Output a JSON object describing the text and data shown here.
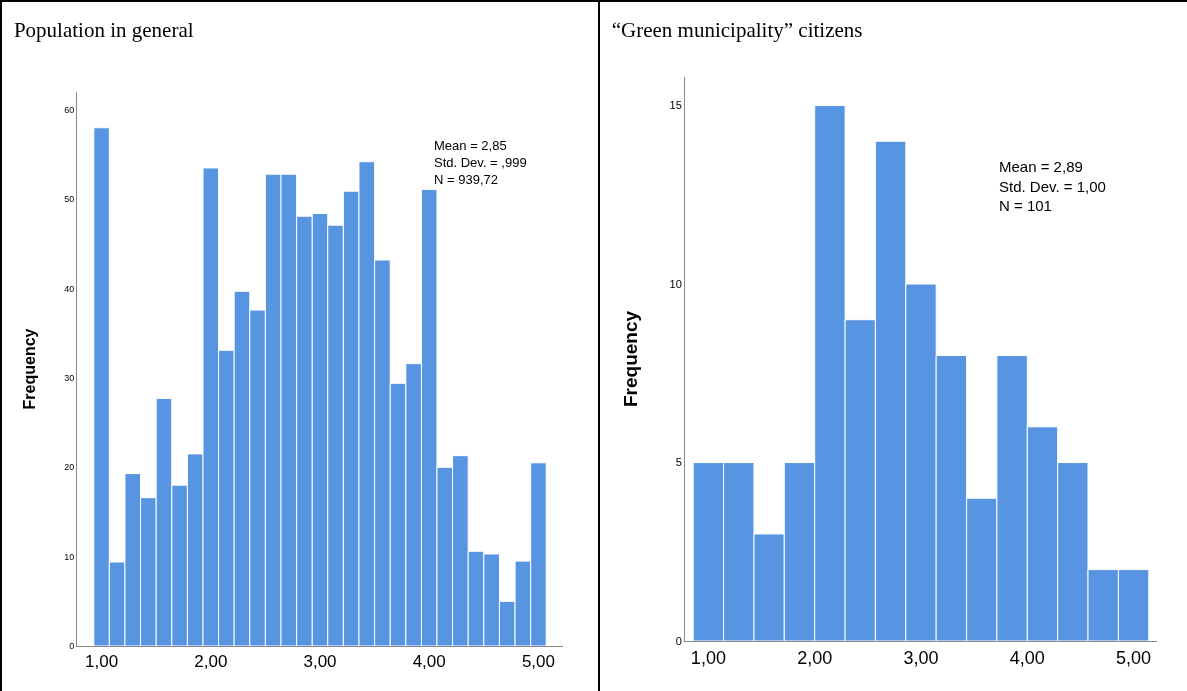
{
  "chart_data": [
    {
      "type": "histogram",
      "title": "Population in general",
      "ylabel": "Frequency",
      "color": "#5795e3",
      "bins": [
        0.929,
        1.071,
        1.214,
        1.357,
        1.5,
        1.643,
        1.786,
        1.929,
        2.071,
        2.214,
        2.357,
        2.5,
        2.643,
        2.786,
        2.929,
        3.071,
        3.214,
        3.357,
        3.5,
        3.643,
        3.786,
        3.929,
        4.071,
        4.214,
        4.357,
        4.5,
        4.643,
        4.786,
        4.929,
        5.071
      ],
      "values": [
        58,
        9.4,
        19.3,
        16.6,
        27.7,
        18,
        21.5,
        53.5,
        33.1,
        39.7,
        37.6,
        52.8,
        52.8,
        48.1,
        48.4,
        47.1,
        50.9,
        54.2,
        43.2,
        29.4,
        31.6,
        51.1,
        20,
        21.3,
        10.6,
        10.3,
        5,
        9.5,
        20.5
      ],
      "xlim": [
        0.775,
        5.225
      ],
      "xticks": [
        {
          "value": 1,
          "label": "1,00"
        },
        {
          "value": 2,
          "label": "2,00"
        },
        {
          "value": 3,
          "label": "3,00"
        },
        {
          "value": 4,
          "label": "4,00"
        },
        {
          "value": 5,
          "label": "5,00"
        }
      ],
      "ylim": [
        0,
        62
      ],
      "yticks": [
        0,
        10,
        20,
        30,
        40,
        50,
        60
      ],
      "grid": false,
      "annotations": [
        "Mean = 2,85\nStd. Dev. = ,999\nN = 939,72"
      ]
    },
    {
      "type": "histogram",
      "title": "“Green municipality” citizens",
      "ylabel": "Frequency",
      "color": "#5795e3",
      "bins": [
        0.857,
        1.143,
        1.429,
        1.714,
        2,
        2.286,
        2.571,
        2.857,
        3.143,
        3.429,
        3.714,
        4,
        4.286,
        4.571,
        4.857,
        5.143
      ],
      "values": [
        5,
        5,
        3,
        5,
        15,
        9,
        14,
        10,
        8,
        4,
        8,
        6,
        5,
        2,
        2
      ],
      "xlim": [
        0.78,
        5.22
      ],
      "xticks": [
        {
          "value": 1,
          "label": "1,00"
        },
        {
          "value": 2,
          "label": "2,00"
        },
        {
          "value": 3,
          "label": "3,00"
        },
        {
          "value": 4,
          "label": "4,00"
        },
        {
          "value": 5,
          "label": "5,00"
        }
      ],
      "ylim": [
        0,
        15.8
      ],
      "yticks": [
        0,
        5,
        10,
        15
      ],
      "grid": false,
      "annotations": [
        "Mean = 2,89\nStd. Dev. = 1,00\nN = 101"
      ]
    }
  ]
}
